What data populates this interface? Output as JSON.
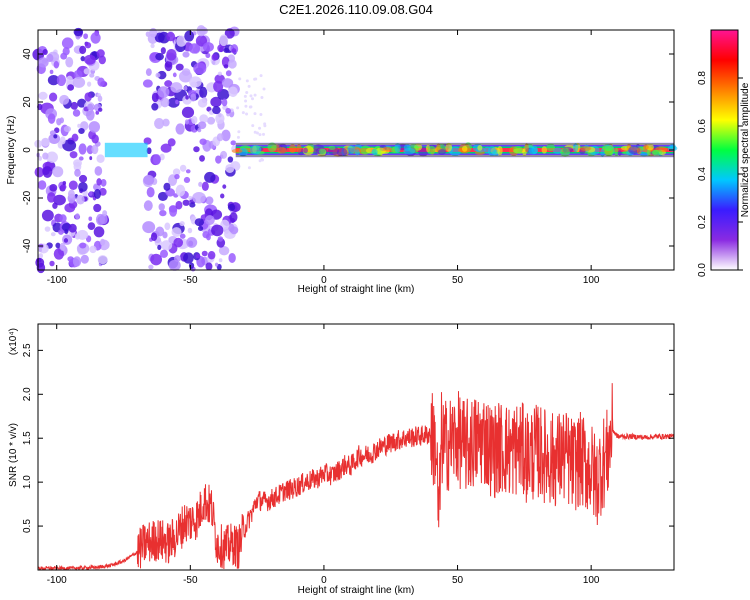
{
  "title": "C2E1.2026.110.09.08.G04",
  "chart_data": [
    {
      "type": "heatmap",
      "name": "spectrogram",
      "xlabel": "Height of straight line (km)",
      "ylabel": "Frequency (Hz)",
      "xlim": [
        -107,
        131
      ],
      "ylim": [
        -50,
        50
      ],
      "xticks": [
        "-100",
        "-50",
        "0",
        "50",
        "100"
      ],
      "xtick_values": [
        -100,
        -50,
        0,
        50,
        100
      ],
      "yticks": [
        "40",
        "20",
        "0",
        "-20",
        "-40"
      ],
      "ytick_values": [
        40,
        20,
        0,
        -20,
        -40
      ],
      "colorbar": {
        "label": "Normalized spectral amplitude",
        "range": [
          0,
          1
        ],
        "ticks": [
          "0.0",
          "0.2",
          "0.4",
          "0.6",
          "0.8"
        ],
        "tick_values": [
          0.0,
          0.2,
          0.4,
          0.6,
          0.8
        ],
        "colors": [
          "#ffffff",
          "#8a2be2",
          "#3a1cff",
          "#00c8ff",
          "#00ff40",
          "#ffff00",
          "#ff8000",
          "#ff0000",
          "#ff1493"
        ]
      },
      "noise_regions_km": [
        [
          -107,
          -82
        ],
        [
          -66,
          -33
        ]
      ],
      "signal_band": {
        "x_start_km": -33,
        "x_end_km": 131,
        "center_hz": 0,
        "halfwidth_hz": 2
      }
    },
    {
      "type": "line",
      "name": "snr",
      "xlabel": "Height of straight line (km)",
      "ylabel": "SNR (10 * v/v)",
      "scale_label": "(x10⁴)",
      "xlim": [
        -107,
        131
      ],
      "ylim": [
        0,
        2.8
      ],
      "xticks": [
        "-100",
        "-50",
        "0",
        "50",
        "100"
      ],
      "xtick_values": [
        -100,
        -50,
        0,
        50,
        100
      ],
      "yticks": [
        "0.5",
        "1.0",
        "1.5",
        "2.0",
        "2.5"
      ],
      "ytick_values": [
        0.5,
        1.0,
        1.5,
        2.0,
        2.5
      ],
      "color": "#e83030",
      "series": [
        {
          "name": "SNR",
          "x": [
            -107,
            -95,
            -85,
            -80,
            -75,
            -70,
            -67,
            -62,
            -58,
            -55,
            -52,
            -50,
            -47,
            -45,
            -42,
            -40,
            -37,
            -34,
            -32,
            -30,
            -27,
            -25,
            -22,
            -20,
            -17,
            -15,
            -12,
            -10,
            -7,
            -5,
            -2,
            0,
            3,
            5,
            8,
            10,
            13,
            15,
            18,
            20,
            25,
            30,
            35,
            40,
            42,
            43,
            44,
            45,
            47,
            50,
            53,
            56,
            60,
            63,
            66,
            70,
            73,
            76,
            80,
            83,
            86,
            90,
            93,
            96,
            100,
            102,
            104,
            106,
            108,
            109,
            110,
            112,
            115,
            120,
            125,
            131
          ],
          "y": [
            0.02,
            0.02,
            0.03,
            0.05,
            0.1,
            0.2,
            0.3,
            0.35,
            0.3,
            0.4,
            0.55,
            0.55,
            0.6,
            0.8,
            0.7,
            0.3,
            0.25,
            0.3,
            0.25,
            0.45,
            0.65,
            0.8,
            0.78,
            0.8,
            0.85,
            0.9,
            0.92,
            0.95,
            1.0,
            1.02,
            1.05,
            1.1,
            1.08,
            1.12,
            1.2,
            1.18,
            1.3,
            1.3,
            1.33,
            1.38,
            1.45,
            1.5,
            1.52,
            1.55,
            1.4,
            0.5,
            1.5,
            1.4,
            1.45,
            1.5,
            1.4,
            1.45,
            1.5,
            1.35,
            1.4,
            1.35,
            1.4,
            1.3,
            1.35,
            1.3,
            1.25,
            1.3,
            1.2,
            1.25,
            1.15,
            1.0,
            1.2,
            1.3,
            1.6,
            1.55,
            1.52,
            1.52,
            1.52,
            1.51,
            1.52,
            1.52
          ]
        }
      ]
    }
  ]
}
